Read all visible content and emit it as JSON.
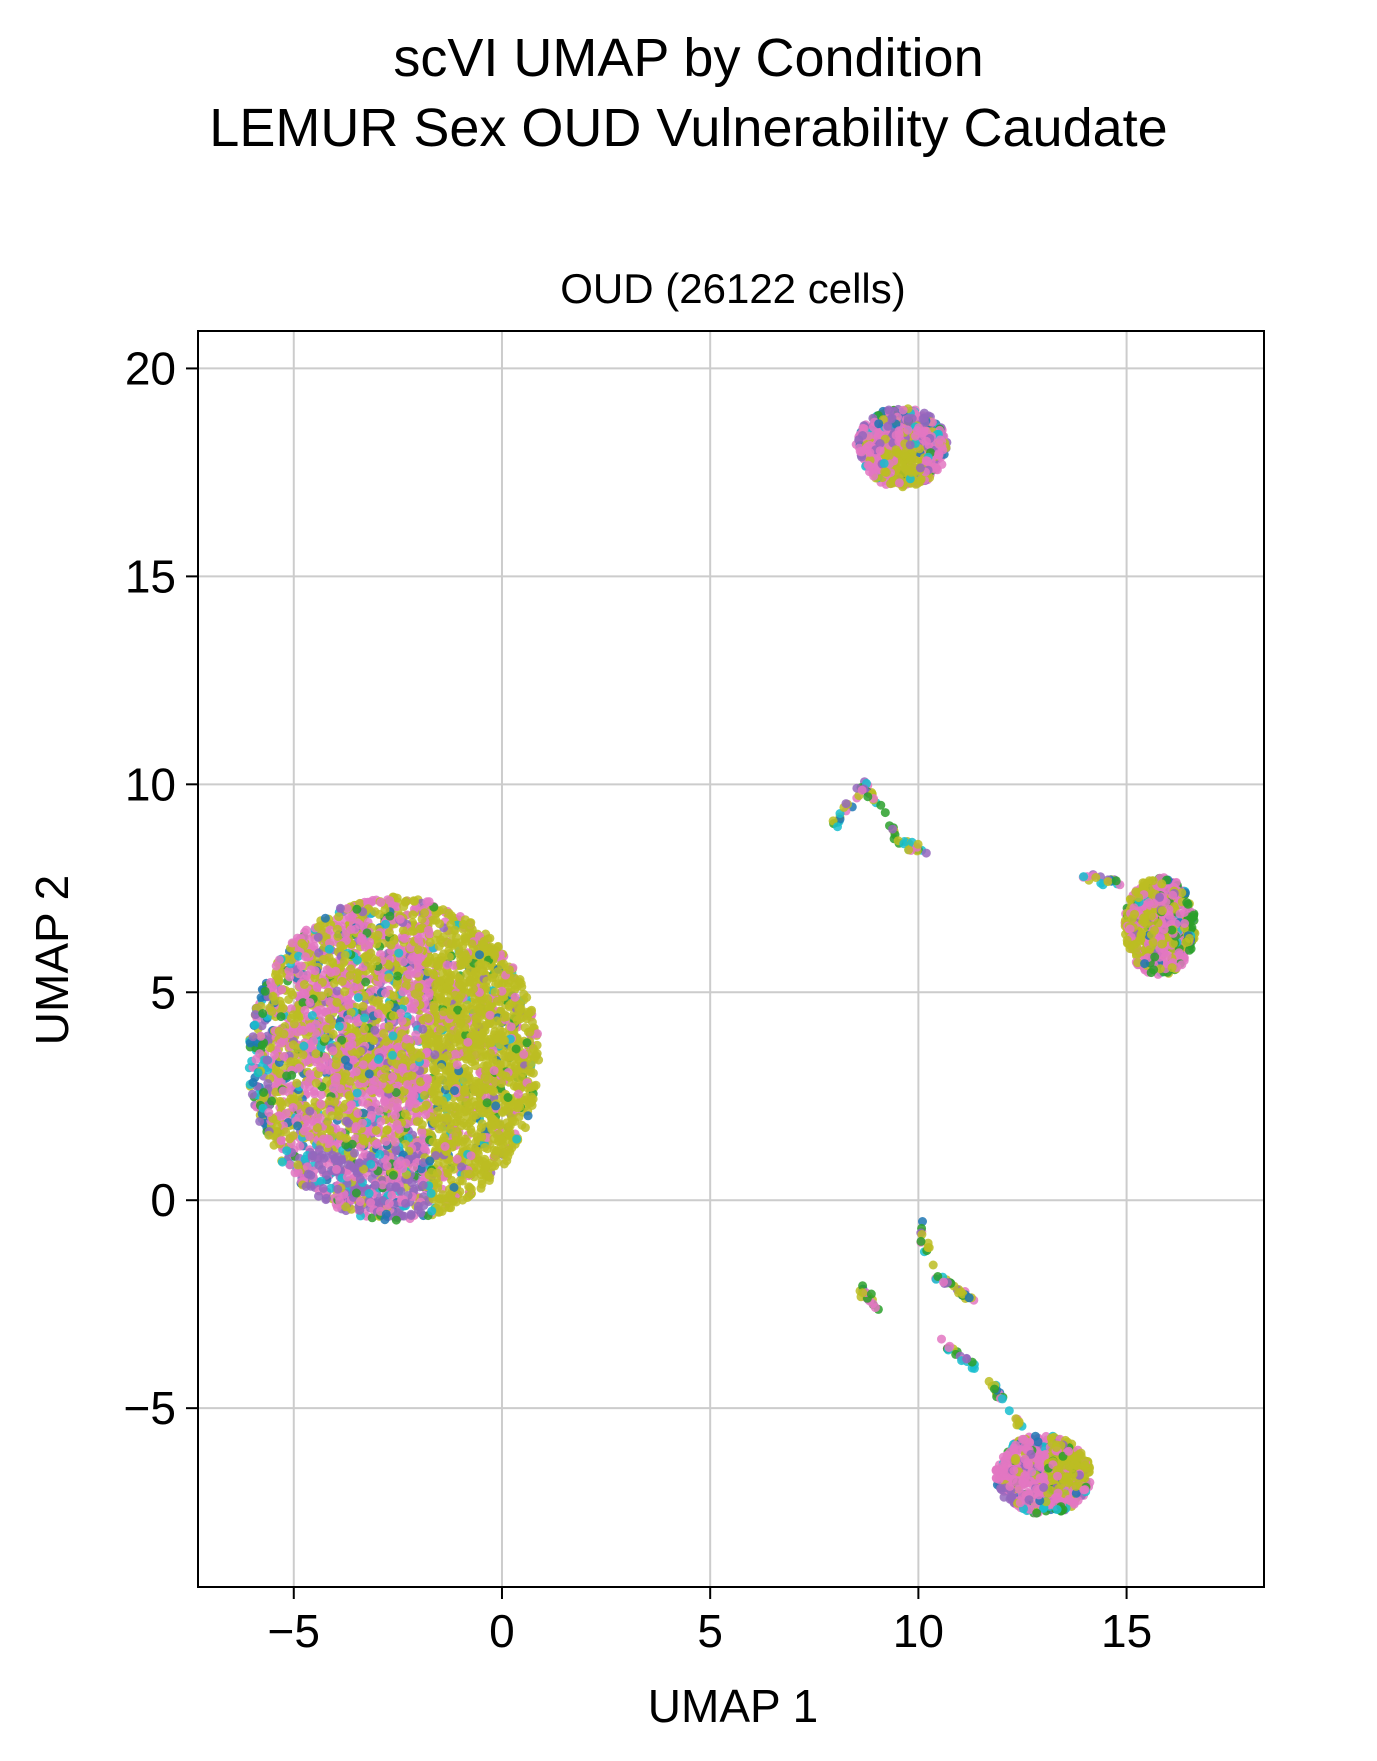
{
  "figure": {
    "suptitle_line1": "scVI UMAP by Condition",
    "suptitle_line2": "LEMUR Sex OUD Vulnerability Caudate"
  },
  "colors": {
    "palette": [
      "#1f77b4",
      "#2ca02c",
      "#17becf",
      "#9467bd",
      "#e377c2",
      "#bcbd22"
    ],
    "grid": "#cccccc",
    "axis": "#000000"
  },
  "chart_data": {
    "type": "scatter",
    "title": "OUD (26122 cells)",
    "xlabel": "UMAP 1",
    "ylabel": "UMAP 2",
    "xlim": [
      -7.3,
      18.3
    ],
    "ylim": [
      -9.3,
      20.9
    ],
    "xticks": [
      -5,
      0,
      5,
      10,
      15
    ],
    "yticks": [
      -5,
      0,
      5,
      10,
      15,
      20
    ],
    "xtick_labels": [
      "−5",
      "0",
      "5",
      "10",
      "15"
    ],
    "ytick_labels": [
      "−5",
      "0",
      "5",
      "10",
      "15",
      "20"
    ],
    "grid": true,
    "legend": "none",
    "n_cells": 26122,
    "clusters": [
      {
        "center": [
          -2.6,
          3.4
        ],
        "spread": [
          3.5,
          3.9
        ],
        "n_points": 4200,
        "mix": "large-left"
      },
      {
        "center": [
          9.6,
          18.1
        ],
        "spread": [
          1.1,
          0.95
        ],
        "n_points": 700,
        "mix": "top"
      },
      {
        "center": [
          15.8,
          6.6
        ],
        "spread": [
          0.85,
          1.2
        ],
        "n_points": 650,
        "mix": "right"
      },
      {
        "center": [
          13.0,
          -6.6
        ],
        "spread": [
          1.15,
          0.95
        ],
        "n_points": 650,
        "mix": "bottom"
      }
    ],
    "trails": [
      {
        "points": [
          [
            8.0,
            9.0
          ],
          [
            8.7,
            10.0
          ],
          [
            9.1,
            9.4
          ],
          [
            9.6,
            8.6
          ],
          [
            10.2,
            8.4
          ]
        ],
        "n_points": 60
      },
      {
        "points": [
          [
            14.0,
            7.8
          ],
          [
            14.8,
            7.6
          ]
        ],
        "n_points": 20
      },
      {
        "points": [
          [
            10.0,
            -0.5
          ],
          [
            10.4,
            -1.8
          ],
          [
            11.0,
            -2.2
          ],
          [
            11.3,
            -2.4
          ]
        ],
        "n_points": 40
      },
      {
        "points": [
          [
            8.6,
            -2.1
          ],
          [
            9.0,
            -2.6
          ]
        ],
        "n_points": 18
      },
      {
        "points": [
          [
            10.5,
            -3.4
          ],
          [
            11.2,
            -3.9
          ],
          [
            12.0,
            -4.7
          ],
          [
            12.5,
            -5.4
          ]
        ],
        "n_points": 40
      }
    ]
  }
}
